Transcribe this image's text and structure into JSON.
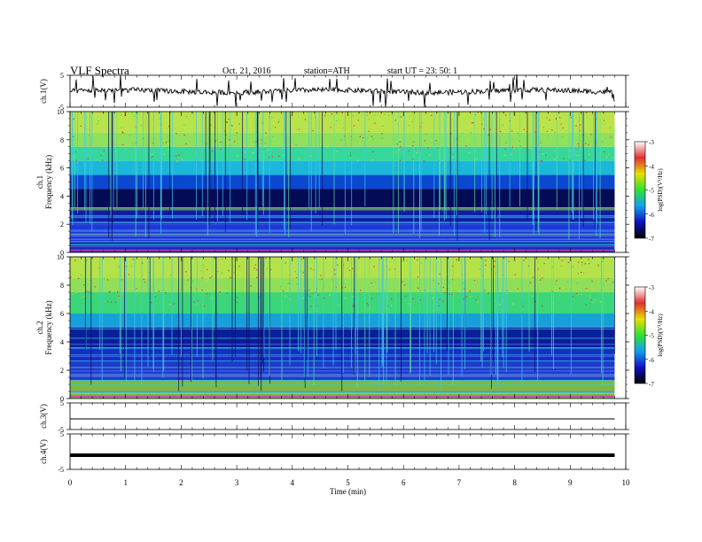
{
  "header": {
    "title": "VLF Spectra",
    "date": "Oct. 21, 2016",
    "station": "station=ATH",
    "start": "start  UT  =   23: 50: 1"
  },
  "chart_data": [
    {
      "type": "line",
      "panel": "ch.1",
      "ylabel": "ch.1(V)",
      "ylim": [
        -5,
        5
      ],
      "yticks": [
        "5",
        "-5"
      ],
      "baseline": 0,
      "x_range": [
        0,
        9.8
      ],
      "grid": false
    },
    {
      "type": "heatmap",
      "panel": "ch.1 spectrogram",
      "ylabel_lines": [
        "ch.1",
        "Frequency  (kHz)"
      ],
      "ylim": [
        0,
        10
      ],
      "yticks": [
        "0",
        "2",
        "4",
        "6",
        "8",
        "10"
      ],
      "x_range": [
        0,
        9.8
      ],
      "bands": [
        {
          "from": 0.0,
          "to": 0.8,
          "color": "#1a2fb0"
        },
        {
          "from": 0.8,
          "to": 2.0,
          "color": "#1c3ad8"
        },
        {
          "from": 2.0,
          "to": 3.0,
          "color": "#0f1ca8"
        },
        {
          "from": 3.0,
          "to": 4.5,
          "color": "#050a55"
        },
        {
          "from": 4.5,
          "to": 5.5,
          "color": "#0a48d0"
        },
        {
          "from": 5.5,
          "to": 6.5,
          "color": "#19b8d8"
        },
        {
          "from": 6.5,
          "to": 7.5,
          "color": "#35d89a"
        },
        {
          "from": 7.5,
          "to": 8.5,
          "color": "#8fe05a"
        },
        {
          "from": 8.5,
          "to": 10.0,
          "color": "#b9e34a"
        }
      ],
      "colorbar": {
        "label": "log(PSD)(V²/Hz)",
        "range": [
          -7,
          -3
        ],
        "ticks": [
          "-3",
          "-4",
          "-5",
          "-6",
          "-7"
        ]
      }
    },
    {
      "type": "heatmap",
      "panel": "ch.2 spectrogram",
      "ylabel_lines": [
        "ch.2",
        "Frequency  (kHz)"
      ],
      "ylim": [
        0,
        10
      ],
      "yticks": [
        "0",
        "2",
        "4",
        "6",
        "8",
        "10"
      ],
      "x_range": [
        0,
        9.8
      ],
      "bands": [
        {
          "from": 0.0,
          "to": 1.3,
          "color": "#7fb83a"
        },
        {
          "from": 1.3,
          "to": 2.6,
          "color": "#1a3cd0"
        },
        {
          "from": 2.6,
          "to": 3.6,
          "color": "#1530c0"
        },
        {
          "from": 3.6,
          "to": 5.0,
          "color": "#0b1e9a"
        },
        {
          "from": 5.0,
          "to": 6.0,
          "color": "#16a0d8"
        },
        {
          "from": 6.0,
          "to": 7.5,
          "color": "#3cd67a"
        },
        {
          "from": 7.5,
          "to": 8.5,
          "color": "#8fe058"
        },
        {
          "from": 8.5,
          "to": 10.0,
          "color": "#b4e24a"
        }
      ],
      "colorbar": {
        "label": "log(PSD)(V²/Hz)",
        "range": [
          -7,
          -3
        ],
        "ticks": [
          "-3",
          "-4",
          "-5",
          "-6",
          "-7"
        ]
      }
    },
    {
      "type": "line",
      "panel": "ch.3",
      "ylabel": "ch.3(V)",
      "ylim": [
        -5,
        5
      ],
      "yticks": [
        "5",
        "-5"
      ],
      "baseline": -1,
      "x_range": [
        0,
        9.8
      ]
    },
    {
      "type": "line",
      "panel": "ch.4",
      "ylabel": "ch.4(V)",
      "ylim": [
        -5,
        5
      ],
      "yticks": [
        "5",
        "-5"
      ],
      "baseline": -1,
      "x_range": [
        0,
        9.8
      ]
    }
  ],
  "x_axis": {
    "label": "Time  (min)",
    "range": [
      0,
      10
    ],
    "ticks": [
      "0",
      "1",
      "2",
      "3",
      "4",
      "5",
      "6",
      "7",
      "8",
      "9",
      "10"
    ]
  },
  "colors": {
    "frame": "#000000",
    "colorbar_stops": [
      "#ffffff",
      "#e03030",
      "#e8e000",
      "#30e030",
      "#10a0f0",
      "#1010c0",
      "#000000"
    ]
  }
}
